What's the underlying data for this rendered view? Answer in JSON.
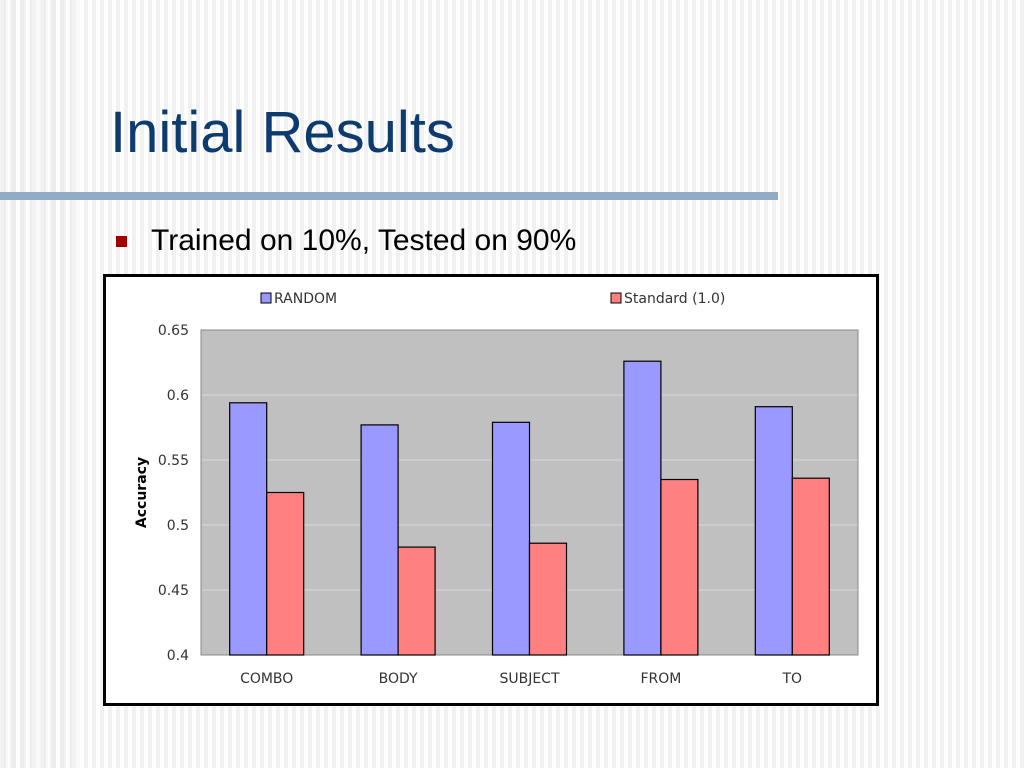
{
  "slide": {
    "title": "Initial Results",
    "bullets": [
      "Trained on 10%, Tested on 90%"
    ]
  },
  "colors": {
    "title": "#0d3b6e",
    "rule": "#93acc6",
    "bullet_marker": "#a00000",
    "plot_background": "#c0c0c0",
    "random": "#9999ff",
    "standard": "#ff8080"
  },
  "chart_data": {
    "type": "bar",
    "title": "",
    "xlabel": "",
    "ylabel": "Accuracy",
    "categories": [
      "COMBO",
      "BODY",
      "SUBJECT",
      "FROM",
      "TO"
    ],
    "series": [
      {
        "name": "RANDOM",
        "values": [
          0.594,
          0.577,
          0.579,
          0.626,
          0.591
        ],
        "color": "#9999ff"
      },
      {
        "name": "Standard (1.0)",
        "values": [
          0.525,
          0.483,
          0.486,
          0.535,
          0.536
        ],
        "color": "#ff8080"
      }
    ],
    "ylim": [
      0.4,
      0.65
    ],
    "yticks": [
      "0.4",
      "0.45",
      "0.5",
      "0.55",
      "0.6",
      "0.65"
    ],
    "grid": true,
    "legend": "top"
  }
}
